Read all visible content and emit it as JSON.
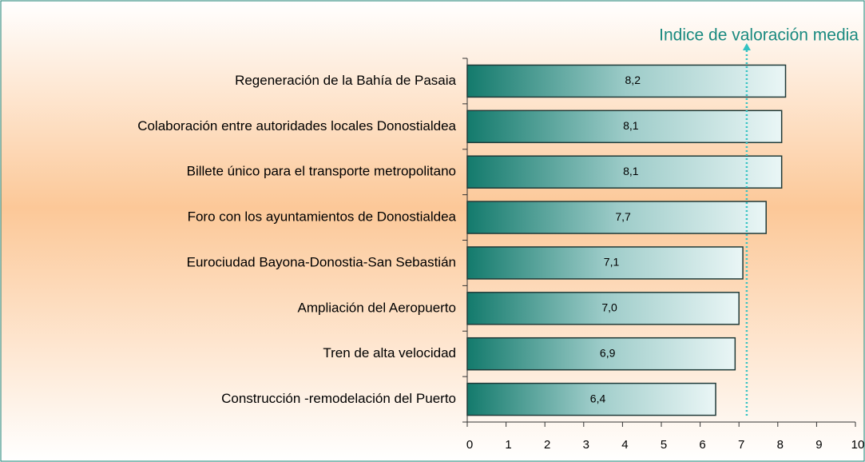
{
  "chart_data": {
    "type": "bar",
    "orientation": "horizontal",
    "categories": [
      "Regeneración de la Bahía de Pasaia",
      "Colaboración entre autoridades locales Donostialdea",
      "Billete único para el transporte metropolitano",
      "Foro con los ayuntamientos de Donostialdea",
      "Eurociudad Bayona-Donostia-San Sebastián",
      "Ampliación del Aeropuerto",
      "Tren de alta velocidad",
      "Construcción -remodelación del Puerto"
    ],
    "values": [
      8.2,
      8.1,
      8.1,
      7.7,
      7.1,
      7.0,
      6.9,
      6.4
    ],
    "value_labels": [
      "8,2",
      "8,1",
      "8,1",
      "7,7",
      "7,1",
      "7,0",
      "6,9",
      "6,4"
    ],
    "color": "#1a7f72",
    "xlim": [
      0,
      10
    ],
    "xticks": [
      0,
      1,
      2,
      3,
      4,
      5,
      6,
      7,
      8,
      9,
      10
    ],
    "reference_line": {
      "label": "Indice de valoración media",
      "value": 7.2,
      "color": "#33c2c2"
    }
  }
}
